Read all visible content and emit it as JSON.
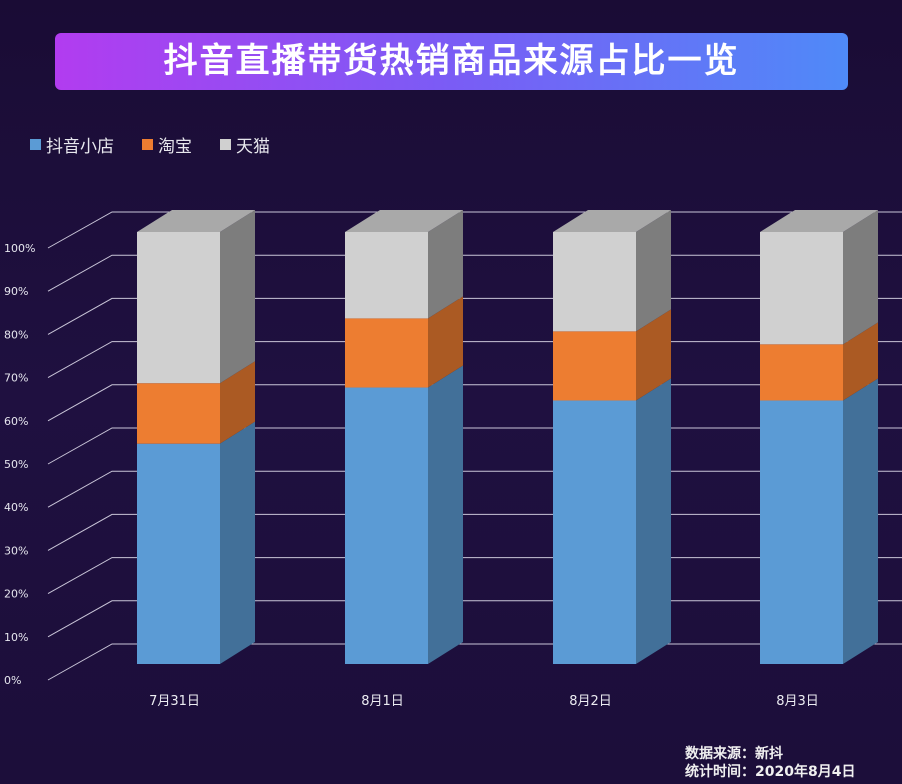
{
  "title": "抖音直播带货热销商品来源占比一览",
  "chart_data": {
    "type": "bar",
    "stacked": true,
    "title": "抖音直播带货热销商品来源占比一览",
    "categories": [
      "7月31日",
      "8月1日",
      "8月2日",
      "8月3日"
    ],
    "series": [
      {
        "name": "抖音小店",
        "color": "#5b9bd5",
        "values": [
          51,
          64,
          61,
          61
        ]
      },
      {
        "name": "淘宝",
        "color": "#ed7d31",
        "values": [
          14,
          16,
          16,
          13
        ]
      },
      {
        "name": "天猫",
        "color": "#d0d0d0",
        "values": [
          35,
          20,
          23,
          26
        ]
      }
    ],
    "ylim": [
      0,
      100
    ],
    "yticks": [
      "0%",
      "10%",
      "20%",
      "30%",
      "40%",
      "50%",
      "60%",
      "70%",
      "80%",
      "90%",
      "100%"
    ],
    "grid": true,
    "legend": "top-left"
  },
  "source": {
    "line1": "数据来源：新抖",
    "line2": "统计时间：2020年8月4日"
  }
}
